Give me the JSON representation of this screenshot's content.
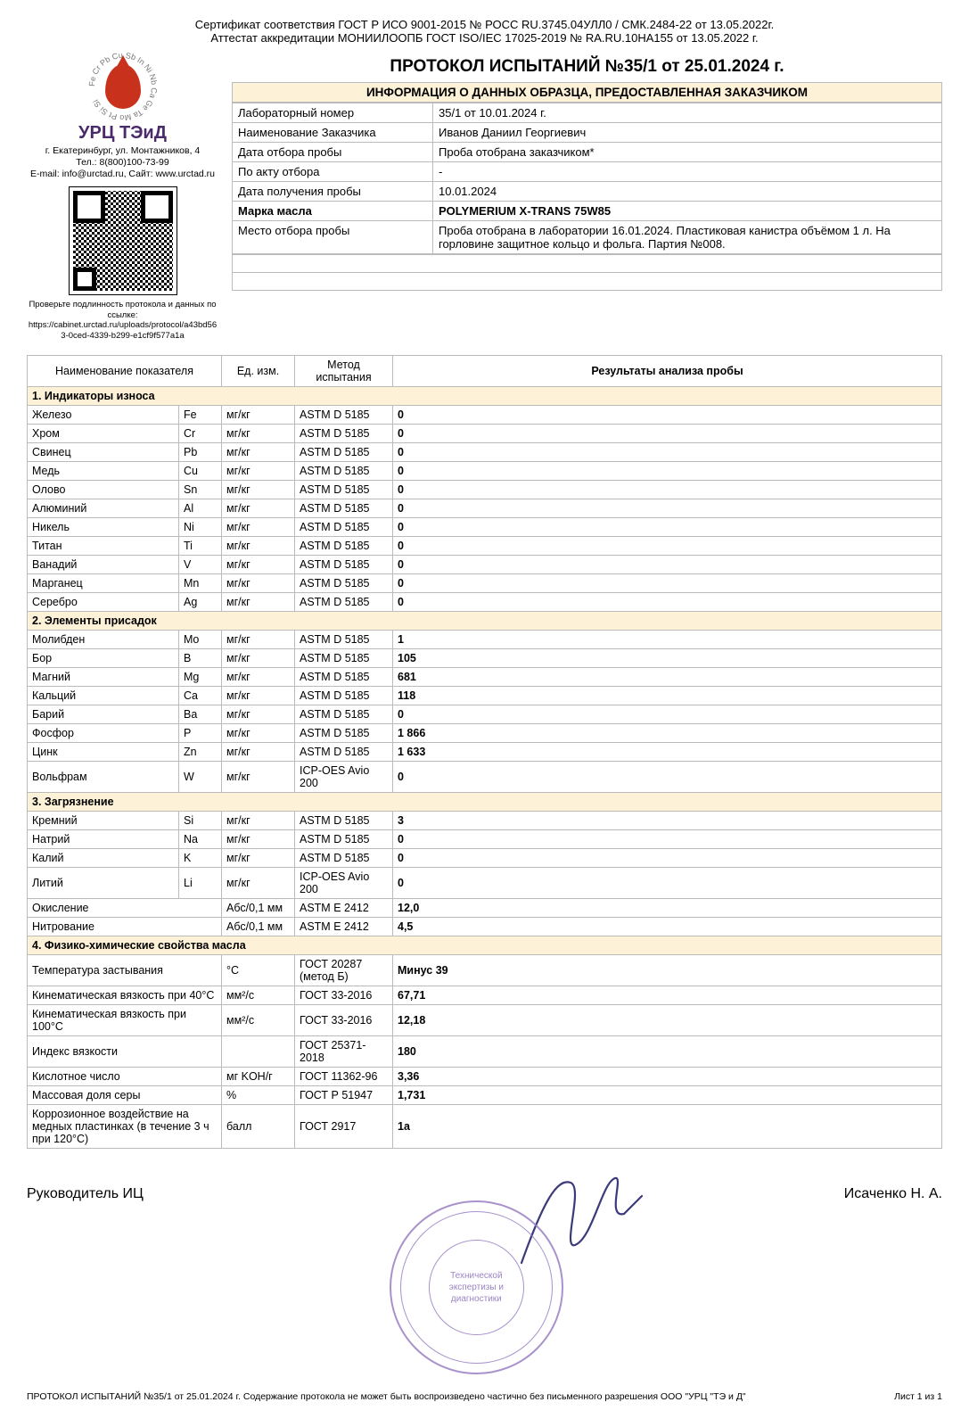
{
  "cert": {
    "line1": "Сертификат соответствия ГОСТ Р ИСО 9001-2015 № РОСС RU.3745.04УЛЛ0 / СМК.2484-22 от 13.05.2022г.",
    "line2": "Аттестат аккредитации МОНИИЛООПБ ГОСТ ISO/IEC 17025-2019 № RA.RU.10НА155 от 13.05.2022 г."
  },
  "org": {
    "logo_name": "УРЦ ТЭиД",
    "address": "г. Екатеринбург, ул. Монтажников, 4",
    "tel": "Тел.: 8(800)100-73-99",
    "email_site": "E-mail: info@urctad.ru, Сайт: www.urctad.ru",
    "verify_label": "Проверьте подлинность протокола и данных по ссылке:",
    "verify_url": "https://cabinet.urctad.ru/uploads/protocol/a43bd563-0ced-4339-b299-e1cf9f577a1a",
    "stamp_center": "Технической\nэкспертизы и\nдиагностики"
  },
  "colors": {
    "section_bg": "#fdf1d8",
    "border": "#bbbbbb",
    "logo_red": "#c8311b",
    "logo_purple": "#4a2a6a",
    "stamp": "#9a7fc4"
  },
  "protocol_title": "ПРОТОКОЛ ИСПЫТАНИЙ №35/1 от 25.01.2024 г.",
  "info_header": "ИНФОРМАЦИЯ О ДАННЫХ ОБРАЗЦА, ПРЕДОСТАВЛЕННАЯ ЗАКАЗЧИКОМ",
  "info": [
    {
      "k": "Лабораторный номер",
      "v": "35/1 от 10.01.2024 г.",
      "bold": false
    },
    {
      "k": "Наименование Заказчика",
      "v": "Иванов Даниил Георгиевич",
      "bold": false
    },
    {
      "k": "Дата отбора пробы",
      "v": "Проба отобрана заказчиком*",
      "bold": false
    },
    {
      "k": "По акту отбора",
      "v": "-",
      "bold": false
    },
    {
      "k": "Дата получения пробы",
      "v": "10.01.2024",
      "bold": false
    },
    {
      "k": "Марка масла",
      "v": "POLYMERIUM X-TRANS 75W85",
      "bold": true
    },
    {
      "k": "Место отбора пробы",
      "v": "Проба отобрана в лаборатории 16.01.2024. Пластиковая канистра объёмом 1 л. На горловине защитное кольцо и фольга. Партия №008.",
      "bold": false
    }
  ],
  "table_headers": {
    "param": "Наименование показателя",
    "unit": "Ед. изм.",
    "method": "Метод испытания",
    "result": "Результаты анализа пробы"
  },
  "sections": [
    {
      "title": "1. Индикаторы износа",
      "rows": [
        {
          "p": "Железо",
          "s": "Fe",
          "u": "мг/кг",
          "m": "ASTM D 5185",
          "r": "0"
        },
        {
          "p": "Хром",
          "s": "Cr",
          "u": "мг/кг",
          "m": "ASTM D 5185",
          "r": "0"
        },
        {
          "p": "Свинец",
          "s": "Pb",
          "u": "мг/кг",
          "m": "ASTM D 5185",
          "r": "0"
        },
        {
          "p": "Медь",
          "s": "Cu",
          "u": "мг/кг",
          "m": "ASTM D 5185",
          "r": "0"
        },
        {
          "p": "Олово",
          "s": "Sn",
          "u": "мг/кг",
          "m": "ASTM D 5185",
          "r": "0"
        },
        {
          "p": "Алюминий",
          "s": "Al",
          "u": "мг/кг",
          "m": "ASTM D 5185",
          "r": "0"
        },
        {
          "p": "Никель",
          "s": "Ni",
          "u": "мг/кг",
          "m": "ASTM D 5185",
          "r": "0"
        },
        {
          "p": "Титан",
          "s": "Ti",
          "u": "мг/кг",
          "m": "ASTM D 5185",
          "r": "0"
        },
        {
          "p": "Ванадий",
          "s": "V",
          "u": "мг/кг",
          "m": "ASTM D 5185",
          "r": "0"
        },
        {
          "p": "Марганец",
          "s": "Mn",
          "u": "мг/кг",
          "m": "ASTM D 5185",
          "r": "0"
        },
        {
          "p": "Серебро",
          "s": "Ag",
          "u": "мг/кг",
          "m": "ASTM D 5185",
          "r": "0"
        }
      ]
    },
    {
      "title": "2. Элементы присадок",
      "rows": [
        {
          "p": "Молибден",
          "s": "Mo",
          "u": "мг/кг",
          "m": "ASTM D 5185",
          "r": "1"
        },
        {
          "p": "Бор",
          "s": "B",
          "u": "мг/кг",
          "m": "ASTM D 5185",
          "r": "105"
        },
        {
          "p": "Магний",
          "s": "Mg",
          "u": "мг/кг",
          "m": "ASTM D 5185",
          "r": "681"
        },
        {
          "p": "Кальций",
          "s": "Ca",
          "u": "мг/кг",
          "m": "ASTM D 5185",
          "r": "118"
        },
        {
          "p": "Барий",
          "s": "Ba",
          "u": "мг/кг",
          "m": "ASTM D 5185",
          "r": "0"
        },
        {
          "p": "Фосфор",
          "s": "P",
          "u": "мг/кг",
          "m": "ASTM D 5185",
          "r": "1 866"
        },
        {
          "p": "Цинк",
          "s": "Zn",
          "u": "мг/кг",
          "m": "ASTM D 5185",
          "r": "1 633"
        },
        {
          "p": "Вольфрам",
          "s": "W",
          "u": "мг/кг",
          "m": "ICP-OES Avio 200",
          "r": "0"
        }
      ]
    },
    {
      "title": "3. Загрязнение",
      "rows": [
        {
          "p": "Кремний",
          "s": "Si",
          "u": "мг/кг",
          "m": "ASTM D 5185",
          "r": "3"
        },
        {
          "p": "Натрий",
          "s": "Na",
          "u": "мг/кг",
          "m": "ASTM D 5185",
          "r": "0"
        },
        {
          "p": "Калий",
          "s": "K",
          "u": "мг/кг",
          "m": "ASTM D 5185",
          "r": "0"
        },
        {
          "p": "Литий",
          "s": "Li",
          "u": "мг/кг",
          "m": "ICP-OES Avio 200",
          "r": "0"
        },
        {
          "p": "Окисление",
          "s": "",
          "u": "Абс/0,1 мм",
          "m": "ASTM E 2412",
          "r": "12,0"
        },
        {
          "p": "Нитрование",
          "s": "",
          "u": "Абс/0,1 мм",
          "m": "ASTM E 2412",
          "r": "4,5"
        }
      ]
    },
    {
      "title": "4. Физико-химические свойства масла",
      "rows": [
        {
          "p": "Температура застывания",
          "s": "",
          "u": "°C",
          "m": "ГОСТ 20287 (метод Б)",
          "r": "Минус 39"
        },
        {
          "p": "Кинематическая вязкость при 40°C",
          "s": "",
          "u": "мм²/с",
          "m": "ГОСТ 33-2016",
          "r": "67,71"
        },
        {
          "p": "Кинематическая вязкость при 100°C",
          "s": "",
          "u": "мм²/с",
          "m": "ГОСТ 33-2016",
          "r": "12,18"
        },
        {
          "p": "Индекс вязкости",
          "s": "",
          "u": "",
          "m": "ГОСТ 25371-2018",
          "r": "180"
        },
        {
          "p": "Кислотное число",
          "s": "",
          "u": "мг KOH/г",
          "m": "ГОСТ 11362-96",
          "r": "3,36"
        },
        {
          "p": "Массовая доля серы",
          "s": "",
          "u": "%",
          "m": "ГОСТ Р 51947",
          "r": "1,731"
        },
        {
          "p": "Коррозионное воздействие на медных пластинках (в течение 3 ч при 120°C)",
          "s": "",
          "u": "балл",
          "m": "ГОСТ 2917",
          "r": "1a"
        }
      ]
    }
  ],
  "signatory": {
    "role": "Руководитель ИЦ",
    "name": "Исаченко Н. А."
  },
  "footer": {
    "left": "ПРОТОКОЛ ИСПЫТАНИЙ №35/1 от 25.01.2024 г. Содержание протокола не может быть воспроизведено частично без письменного разрешения ООО \"УРЦ \"ТЭ и Д\"",
    "right": "Лист 1 из 1"
  }
}
